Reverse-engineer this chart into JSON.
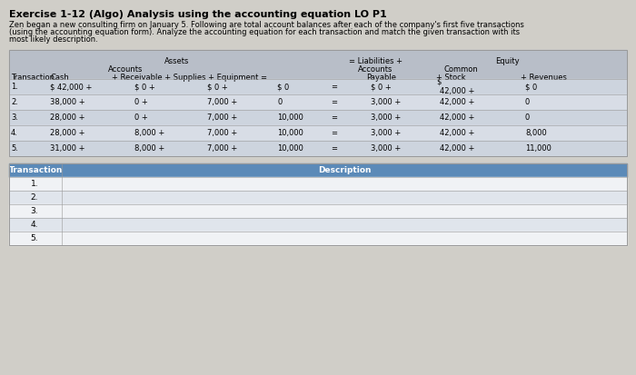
{
  "title": "Exercise 1-12 (Algo) Analysis using the accounting equation LO P1",
  "sub1": "Zen began a new consulting firm on January 5. Following are total account balances after each of the company's first five transactions",
  "sub2": "(using the accounting equation form). Analyze the accounting equation for each transaction and match the given transaction with its",
  "sub3": "most likely description.",
  "bg_color": "#d0cec8",
  "table_header_bg": "#b8bec8",
  "row_colors": [
    "#cdd4de",
    "#d8dde6",
    "#cdd4de",
    "#d8dde6",
    "#cdd4de"
  ],
  "btable_header_bg": "#5b8ab8",
  "btable_row_colors": [
    "#f0f2f5",
    "#e0e5ec",
    "#f0f2f5",
    "#e0e5ec",
    "#f0f2f5"
  ],
  "eq_rows": [
    [
      "1.",
      "$ 42,000 +",
      "$ 0 +",
      "$ 0 +",
      "$ 0",
      "=",
      "$ 0 +",
      "$",
      "42,000 +",
      "$ 0"
    ],
    [
      "2.",
      "38,000 +",
      "0 +",
      "7,000 +",
      "0",
      "=",
      "3,000 +",
      "42,000 +",
      "",
      "0"
    ],
    [
      "3.",
      "28,000 +",
      "0 +",
      "7,000 +",
      "10,000",
      "=",
      "3,000 +",
      "42,000 +",
      "",
      "0"
    ],
    [
      "4.",
      "28,000 +",
      "8,000 +",
      "7,000 +",
      "10,000",
      "=",
      "3,000 +",
      "42,000 +",
      "",
      "8,000"
    ],
    [
      "5.",
      "31,000 +",
      "8,000 +",
      "7,000 +",
      "10,000",
      "=",
      "3,000 +",
      "42,000 +",
      "",
      "11,000"
    ]
  ],
  "btransactions": [
    "1.",
    "2.",
    "3.",
    "4.",
    "5."
  ]
}
